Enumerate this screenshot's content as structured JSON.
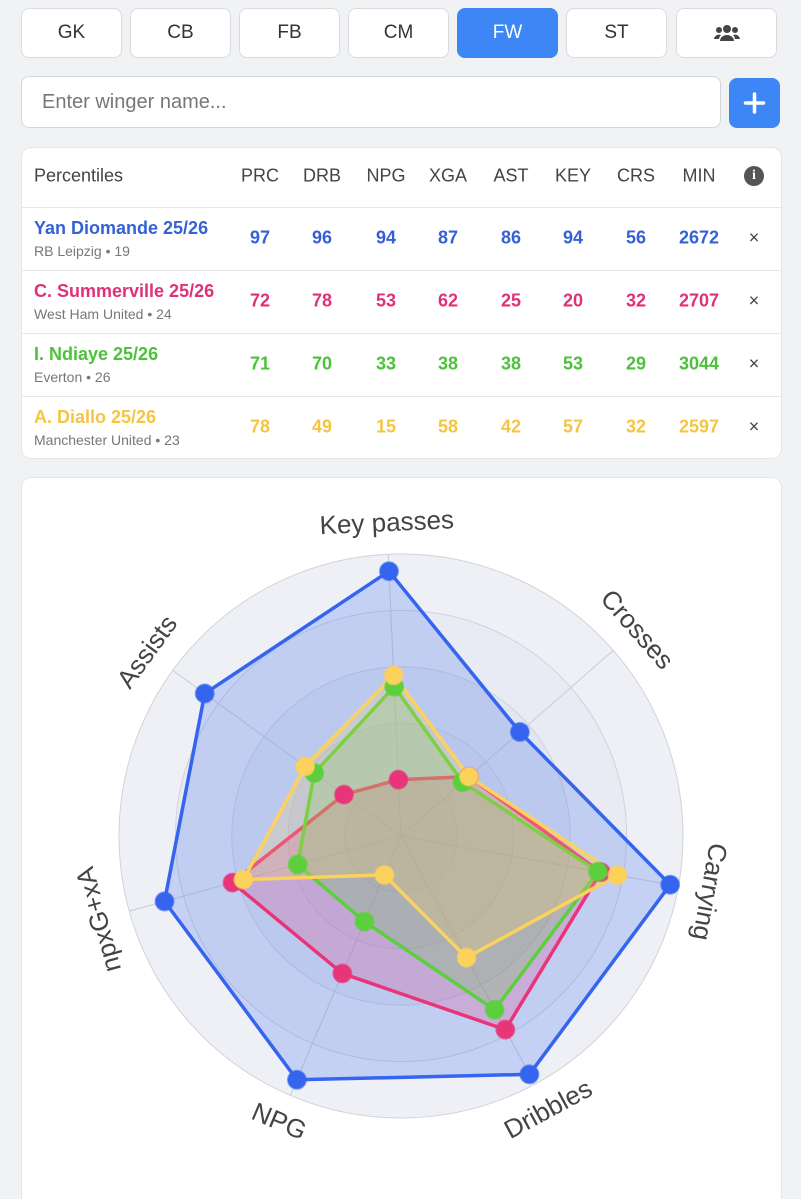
{
  "tabs": [
    "GK",
    "CB",
    "FB",
    "CM",
    "FW",
    "ST"
  ],
  "active_tab": "FW",
  "search": {
    "placeholder": "Enter winger name..."
  },
  "table": {
    "header": [
      "Percentiles",
      "PRC",
      "DRB",
      "NPG",
      "XGA",
      "AST",
      "KEY",
      "CRS",
      "MIN"
    ],
    "rows": [
      {
        "name": "Yan Diomande 25/26",
        "subtitle": "RB Leipzig • 19",
        "color": "#3461d6",
        "values": [
          97,
          96,
          94,
          87,
          86,
          94,
          56,
          2672
        ]
      },
      {
        "name": "C. Summerville 25/26",
        "subtitle": "West Ham United • 24",
        "color": "#e0307a",
        "values": [
          72,
          78,
          53,
          62,
          25,
          20,
          32,
          2707
        ]
      },
      {
        "name": "I. Ndiaye 25/26",
        "subtitle": "Everton • 26",
        "color": "#4cc23a",
        "values": [
          71,
          70,
          33,
          38,
          38,
          53,
          29,
          3044
        ]
      },
      {
        "name": "A. Diallo 25/26",
        "subtitle": "Manchester United • 23",
        "color": "#f5c542",
        "values": [
          78,
          49,
          15,
          58,
          42,
          57,
          32,
          2597
        ]
      }
    ]
  },
  "chart_data": {
    "type": "radar",
    "categories": [
      "Key passes",
      "Crosses",
      "Carrying",
      "Dribbles",
      "NPG",
      "npxG+xA",
      "Assists"
    ],
    "rlim": [
      0,
      100
    ],
    "rticks": [
      20,
      40,
      60,
      80,
      100
    ],
    "series": [
      {
        "color": "#3565ee",
        "values": [
          94,
          56,
          97,
          96,
          94,
          87,
          86
        ]
      },
      {
        "color": "#e8357a",
        "values": [
          20,
          32,
          72,
          78,
          53,
          62,
          25
        ]
      },
      {
        "color": "#5ccf3e",
        "values": [
          53,
          29,
          71,
          70,
          33,
          38,
          38
        ]
      },
      {
        "color": "#fcd15c",
        "values": [
          57,
          32,
          78,
          49,
          15,
          58,
          42
        ]
      }
    ]
  }
}
